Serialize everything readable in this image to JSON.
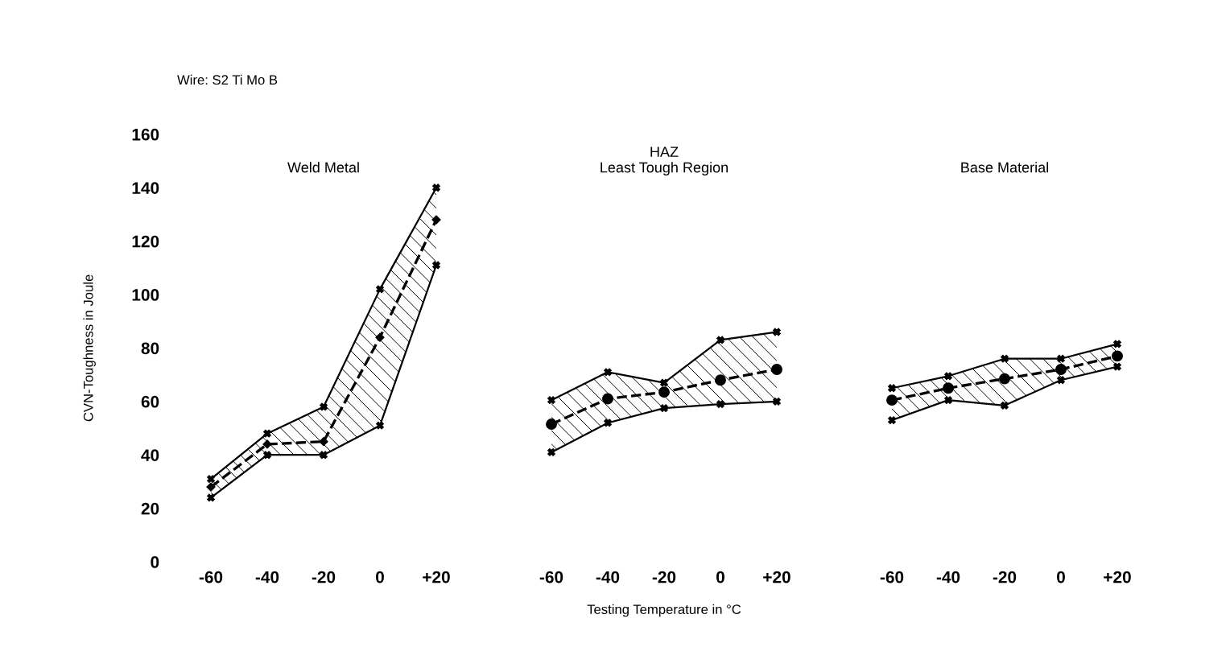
{
  "chart_data": [
    {
      "type": "line",
      "title": "Weld Metal",
      "ylabel": "CVN-Toughness in Joule",
      "annotations": [
        "Wire: S2 Ti Mo B"
      ],
      "x": [
        -60,
        -40,
        -20,
        0,
        20
      ],
      "xlim": [
        -60,
        20
      ],
      "xticks": [
        {
          "value": -60,
          "label": "-60"
        },
        {
          "value": -40,
          "label": "-40"
        },
        {
          "value": -20,
          "label": "-20"
        },
        0,
        {
          "value": 20,
          "label": "+20"
        }
      ],
      "ylim": [
        0,
        160
      ],
      "yticks": [
        0,
        20,
        40,
        60,
        80,
        100,
        120,
        140,
        160
      ],
      "grid": false,
      "legend": false,
      "series": [
        {
          "color": "#000000",
          "marker": "cross",
          "line_style": "solid",
          "values": [
            31,
            48,
            58,
            102,
            140
          ]
        },
        {
          "color": "#000000",
          "marker": "diamond",
          "line_style": "dashed",
          "values": [
            28,
            44,
            45,
            84,
            128
          ],
          "lower": [
            24,
            40,
            40,
            51,
            111
          ],
          "upper": [
            31,
            48,
            58,
            102,
            140
          ]
        },
        {
          "color": "#000000",
          "marker": "cross",
          "line_style": "solid",
          "values": [
            24,
            40,
            40,
            51,
            111
          ]
        }
      ]
    },
    {
      "type": "line",
      "title": "HAZ\nLeast Tough Region",
      "xlabel": "Testing Temperature in °C",
      "x": [
        -60,
        -40,
        -20,
        0,
        20
      ],
      "xlim": [
        -60,
        20
      ],
      "xticks": [
        {
          "value": -60,
          "label": "-60"
        },
        {
          "value": -40,
          "label": "-40"
        },
        {
          "value": -20,
          "label": "-20"
        },
        0,
        {
          "value": 20,
          "label": "+20"
        }
      ],
      "ylim": [
        0,
        160
      ],
      "tick_labels": "x",
      "grid": false,
      "legend": false,
      "series": [
        {
          "color": "#000000",
          "marker": "cross",
          "line_style": "solid",
          "values": [
            60.5,
            71,
            67,
            83,
            86
          ]
        },
        {
          "color": "#000000",
          "marker": "circle",
          "line_style": "dashed",
          "values": [
            51.5,
            61,
            63.5,
            68,
            72
          ],
          "lower": [
            41,
            52,
            57.5,
            59,
            60
          ],
          "upper": [
            60.5,
            71,
            67,
            83,
            86
          ]
        },
        {
          "color": "#000000",
          "marker": "cross",
          "line_style": "solid",
          "values": [
            41,
            52,
            57.5,
            59,
            60
          ]
        }
      ]
    },
    {
      "type": "line",
      "title": "Base Material",
      "x": [
        -60,
        -40,
        -20,
        0,
        20
      ],
      "xlim": [
        -60,
        20
      ],
      "xticks": [
        {
          "value": -60,
          "label": "-60"
        },
        {
          "value": -40,
          "label": "-40"
        },
        {
          "value": -20,
          "label": "-20"
        },
        0,
        {
          "value": 20,
          "label": "+20"
        }
      ],
      "ylim": [
        0,
        160
      ],
      "tick_labels": "x",
      "grid": false,
      "legend": false,
      "series": [
        {
          "color": "#000000",
          "marker": "cross",
          "line_style": "solid",
          "values": [
            65,
            69.5,
            76,
            76,
            81.5
          ]
        },
        {
          "color": "#000000",
          "marker": "circle",
          "line_style": "dashed",
          "values": [
            60.5,
            65,
            68.5,
            72,
            77
          ],
          "lower": [
            53,
            60.5,
            58.5,
            68,
            73
          ],
          "upper": [
            65,
            69.5,
            76,
            76,
            81.5
          ]
        },
        {
          "color": "#000000",
          "marker": "cross",
          "line_style": "solid",
          "values": [
            53,
            60.5,
            58.5,
            68,
            73
          ]
        }
      ]
    }
  ]
}
